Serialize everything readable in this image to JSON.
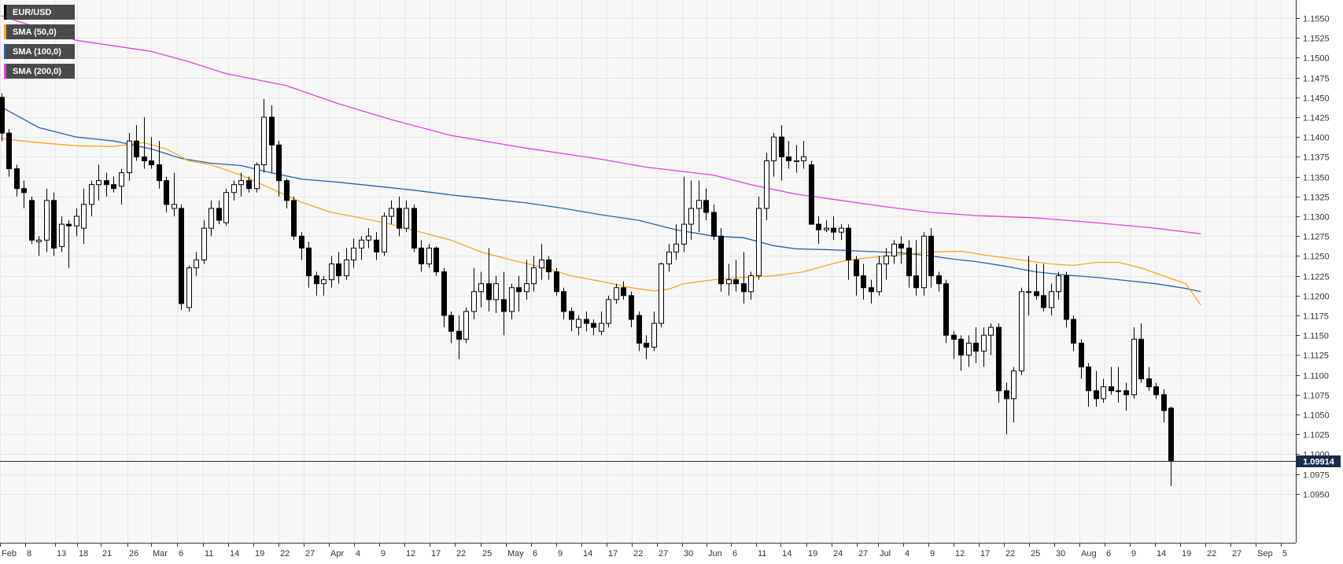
{
  "legend": [
    {
      "label": "EUR/USD",
      "color": "#000000"
    },
    {
      "label": "SMA (50,0)",
      "color": "#f5a623"
    },
    {
      "label": "SMA (100,0)",
      "color": "#2b5fa8"
    },
    {
      "label": "SMA (200,0)",
      "color": "#e040e0"
    }
  ],
  "last_price_label": "1.09914",
  "chart_data": {
    "type": "candlestick",
    "x_ticks": [
      "Feb",
      "8",
      "13",
      "18",
      "21",
      "26",
      "Mar",
      "6",
      "11",
      "14",
      "19",
      "22",
      "27",
      "Apr",
      "4",
      "9",
      "12",
      "17",
      "22",
      "25",
      "May",
      "6",
      "9",
      "14",
      "17",
      "22",
      "27",
      "30",
      "Jun",
      "6",
      "11",
      "14",
      "19",
      "24",
      "27",
      "Jul",
      "4",
      "9",
      "12",
      "17",
      "22",
      "25",
      "30",
      "Aug",
      "6",
      "9",
      "14",
      "19",
      "22",
      "27",
      "Sep",
      "5"
    ],
    "y_ticks": [
      "1.1550",
      "1.1525",
      "1.1500",
      "1.1475",
      "1.1450",
      "1.1425",
      "1.1400",
      "1.1375",
      "1.1350",
      "1.1325",
      "1.1300",
      "1.1275",
      "1.1250",
      "1.1225",
      "1.1200",
      "1.1175",
      "1.1150",
      "1.1125",
      "1.1100",
      "1.1075",
      "1.1050",
      "1.1025",
      "1.1000",
      "1.0975",
      "1.0950"
    ],
    "ylim": [
      1.0945,
      1.157
    ],
    "last_price": 1.09914,
    "colors": {
      "up_body": "#ffffff",
      "down_body": "#000000",
      "wick": "#000000",
      "sma50": "#f5a623",
      "sma100": "#2b5fa8",
      "sma200": "#e040e0",
      "price_line": "#1a2b4c",
      "grid": "#e6e6e6"
    },
    "candles": [
      [
        1.145,
        1.1455,
        1.1395,
        1.1405
      ],
      [
        1.1405,
        1.141,
        1.135,
        1.136
      ],
      [
        1.136,
        1.1365,
        1.1325,
        1.1335
      ],
      [
        1.1335,
        1.1345,
        1.131,
        1.133
      ],
      [
        1.132,
        1.1325,
        1.1265,
        1.127
      ],
      [
        1.1268,
        1.1275,
        1.125,
        1.127
      ],
      [
        1.127,
        1.1335,
        1.1255,
        1.132
      ],
      [
        1.132,
        1.133,
        1.125,
        1.126
      ],
      [
        1.1262,
        1.13,
        1.1255,
        1.129
      ],
      [
        1.129,
        1.1295,
        1.1235,
        1.1288
      ],
      [
        1.1288,
        1.131,
        1.1275,
        1.13
      ],
      [
        1.1285,
        1.1335,
        1.1265,
        1.1315
      ],
      [
        1.1315,
        1.1345,
        1.13,
        1.134
      ],
      [
        1.134,
        1.1365,
        1.132,
        1.1345
      ],
      [
        1.1345,
        1.1355,
        1.1325,
        1.134
      ],
      [
        1.134,
        1.135,
        1.133,
        1.1335
      ],
      [
        1.1338,
        1.136,
        1.1315,
        1.1355
      ],
      [
        1.1355,
        1.1405,
        1.1345,
        1.1395
      ],
      [
        1.1395,
        1.1415,
        1.137,
        1.1375
      ],
      [
        1.1375,
        1.1425,
        1.136,
        1.137
      ],
      [
        1.137,
        1.14,
        1.136,
        1.1365
      ],
      [
        1.1365,
        1.1395,
        1.1335,
        1.1345
      ],
      [
        1.1345,
        1.135,
        1.1305,
        1.1315
      ],
      [
        1.131,
        1.1355,
        1.13,
        1.1315
      ],
      [
        1.131,
        1.1315,
        1.1182,
        1.119
      ],
      [
        1.1185,
        1.1238,
        1.118,
        1.1235
      ],
      [
        1.1235,
        1.1255,
        1.1225,
        1.1245
      ],
      [
        1.1245,
        1.1295,
        1.124,
        1.1285
      ],
      [
        1.1285,
        1.132,
        1.1275,
        1.131
      ],
      [
        1.131,
        1.132,
        1.129,
        1.1295
      ],
      [
        1.1292,
        1.1335,
        1.1288,
        1.133
      ],
      [
        1.133,
        1.1345,
        1.132,
        1.134
      ],
      [
        1.134,
        1.1355,
        1.1325,
        1.1345
      ],
      [
        1.1345,
        1.135,
        1.133,
        1.1335
      ],
      [
        1.1335,
        1.1368,
        1.133,
        1.1365
      ],
      [
        1.1365,
        1.1448,
        1.1355,
        1.1425
      ],
      [
        1.1425,
        1.144,
        1.1355,
        1.139
      ],
      [
        1.139,
        1.1395,
        1.1325,
        1.1345
      ],
      [
        1.1345,
        1.1348,
        1.131,
        1.132
      ],
      [
        1.132,
        1.1325,
        1.127,
        1.1275
      ],
      [
        1.1275,
        1.128,
        1.1245,
        1.126
      ],
      [
        1.126,
        1.1268,
        1.121,
        1.1225
      ],
      [
        1.1225,
        1.123,
        1.12,
        1.1215
      ],
      [
        1.1215,
        1.1225,
        1.12,
        1.122
      ],
      [
        1.122,
        1.125,
        1.121,
        1.124
      ],
      [
        1.124,
        1.1255,
        1.1215,
        1.1225
      ],
      [
        1.1225,
        1.126,
        1.122,
        1.1245
      ],
      [
        1.1245,
        1.1272,
        1.1235,
        1.126
      ],
      [
        1.126,
        1.1275,
        1.1245,
        1.127
      ],
      [
        1.127,
        1.1285,
        1.126,
        1.1275
      ],
      [
        1.127,
        1.128,
        1.1245,
        1.1255
      ],
      [
        1.1255,
        1.1305,
        1.125,
        1.13
      ],
      [
        1.13,
        1.132,
        1.129,
        1.131
      ],
      [
        1.131,
        1.1325,
        1.1275,
        1.1285
      ],
      [
        1.1285,
        1.132,
        1.128,
        1.131
      ],
      [
        1.131,
        1.1315,
        1.1255,
        1.126
      ],
      [
        1.126,
        1.127,
        1.123,
        1.124
      ],
      [
        1.124,
        1.1265,
        1.1235,
        1.126
      ],
      [
        1.126,
        1.1262,
        1.1225,
        1.123
      ],
      [
        1.123,
        1.1235,
        1.116,
        1.1175
      ],
      [
        1.1175,
        1.118,
        1.114,
        1.1155
      ],
      [
        1.1155,
        1.1175,
        1.112,
        1.1145
      ],
      [
        1.1145,
        1.1185,
        1.114,
        1.118
      ],
      [
        1.118,
        1.1235,
        1.117,
        1.1205
      ],
      [
        1.1205,
        1.123,
        1.1185,
        1.1215
      ],
      [
        1.1215,
        1.126,
        1.118,
        1.1195
      ],
      [
        1.1195,
        1.1225,
        1.1178,
        1.1215
      ],
      [
        1.1195,
        1.123,
        1.115,
        1.118
      ],
      [
        1.118,
        1.1215,
        1.117,
        1.121
      ],
      [
        1.121,
        1.1225,
        1.118,
        1.1205
      ],
      [
        1.1205,
        1.1245,
        1.1195,
        1.1215
      ],
      [
        1.1215,
        1.125,
        1.1205,
        1.1235
      ],
      [
        1.1235,
        1.1265,
        1.122,
        1.1245
      ],
      [
        1.1245,
        1.125,
        1.122,
        1.123
      ],
      [
        1.123,
        1.1235,
        1.12,
        1.1205
      ],
      [
        1.1205,
        1.121,
        1.117,
        1.118
      ],
      [
        1.118,
        1.1185,
        1.1155,
        1.117
      ],
      [
        1.116,
        1.1175,
        1.115,
        1.117
      ],
      [
        1.117,
        1.118,
        1.1155,
        1.1165
      ],
      [
        1.1165,
        1.117,
        1.115,
        1.116
      ],
      [
        1.1155,
        1.118,
        1.115,
        1.1165
      ],
      [
        1.1165,
        1.12,
        1.116,
        1.1195
      ],
      [
        1.1195,
        1.1215,
        1.119,
        1.121
      ],
      [
        1.121,
        1.1218,
        1.1195,
        1.12
      ],
      [
        1.12,
        1.1205,
        1.116,
        1.117
      ],
      [
        1.1175,
        1.118,
        1.113,
        1.114
      ],
      [
        1.114,
        1.115,
        1.112,
        1.1135
      ],
      [
        1.1135,
        1.118,
        1.113,
        1.1165
      ],
      [
        1.1165,
        1.1242,
        1.116,
        1.124
      ],
      [
        1.124,
        1.1265,
        1.123,
        1.1255
      ],
      [
        1.1255,
        1.129,
        1.1245,
        1.1265
      ],
      [
        1.1265,
        1.135,
        1.1255,
        1.129
      ],
      [
        1.129,
        1.1345,
        1.127,
        1.131
      ],
      [
        1.131,
        1.1345,
        1.128,
        1.132
      ],
      [
        1.132,
        1.1335,
        1.1295,
        1.1305
      ],
      [
        1.1305,
        1.1315,
        1.127,
        1.1275
      ],
      [
        1.1275,
        1.1285,
        1.1205,
        1.1215
      ],
      [
        1.1215,
        1.124,
        1.12,
        1.122
      ],
      [
        1.122,
        1.1245,
        1.1205,
        1.1215
      ],
      [
        1.1215,
        1.1255,
        1.119,
        1.1205
      ],
      [
        1.1205,
        1.123,
        1.1195,
        1.1225
      ],
      [
        1.1225,
        1.1325,
        1.122,
        1.131
      ],
      [
        1.131,
        1.138,
        1.1295,
        1.137
      ],
      [
        1.137,
        1.1405,
        1.135,
        1.14
      ],
      [
        1.14,
        1.1415,
        1.1345,
        1.1375
      ],
      [
        1.1375,
        1.1395,
        1.136,
        1.137
      ],
      [
        1.137,
        1.139,
        1.1355,
        1.137
      ],
      [
        1.137,
        1.1395,
        1.136,
        1.1375
      ],
      [
        1.1365,
        1.137,
        1.129,
        1.129
      ],
      [
        1.129,
        1.13,
        1.1265,
        1.1283
      ],
      [
        1.1283,
        1.1295,
        1.128,
        1.1285
      ],
      [
        1.1285,
        1.13,
        1.127,
        1.128
      ],
      [
        1.128,
        1.129,
        1.127,
        1.1285
      ],
      [
        1.1285,
        1.129,
        1.122,
        1.1245
      ],
      [
        1.1245,
        1.125,
        1.12,
        1.1225
      ],
      [
        1.1225,
        1.124,
        1.1195,
        1.121
      ],
      [
        1.121,
        1.122,
        1.119,
        1.1205
      ],
      [
        1.1205,
        1.125,
        1.12,
        1.124
      ],
      [
        1.124,
        1.126,
        1.122,
        1.125
      ],
      [
        1.125,
        1.127,
        1.124,
        1.1265
      ],
      [
        1.1265,
        1.1275,
        1.124,
        1.126
      ],
      [
        1.126,
        1.127,
        1.121,
        1.1225
      ],
      [
        1.1225,
        1.127,
        1.12,
        1.121
      ],
      [
        1.121,
        1.128,
        1.12,
        1.1275
      ],
      [
        1.1275,
        1.1285,
        1.121,
        1.1225
      ],
      [
        1.1225,
        1.123,
        1.1205,
        1.1215
      ],
      [
        1.1215,
        1.122,
        1.114,
        1.115
      ],
      [
        1.115,
        1.1155,
        1.112,
        1.1145
      ],
      [
        1.1145,
        1.115,
        1.1105,
        1.1125
      ],
      [
        1.1125,
        1.115,
        1.111,
        1.114
      ],
      [
        1.114,
        1.116,
        1.1115,
        1.113
      ],
      [
        1.113,
        1.116,
        1.111,
        1.115
      ],
      [
        1.115,
        1.1165,
        1.1125,
        1.116
      ],
      [
        1.116,
        1.1165,
        1.1065,
        1.108
      ],
      [
        1.108,
        1.109,
        1.1025,
        1.107
      ],
      [
        1.107,
        1.111,
        1.104,
        1.1105
      ],
      [
        1.1105,
        1.121,
        1.11,
        1.1205
      ],
      [
        1.1205,
        1.125,
        1.1175,
        1.1205
      ],
      [
        1.1205,
        1.124,
        1.1195,
        1.12
      ],
      [
        1.12,
        1.124,
        1.118,
        1.1185
      ],
      [
        1.1185,
        1.1215,
        1.1175,
        1.1205
      ],
      [
        1.1205,
        1.123,
        1.1195,
        1.1225
      ],
      [
        1.1225,
        1.123,
        1.116,
        1.117
      ],
      [
        1.117,
        1.1175,
        1.113,
        1.114
      ],
      [
        1.114,
        1.1145,
        1.1095,
        1.111
      ],
      [
        1.111,
        1.1115,
        1.106,
        1.108
      ],
      [
        1.108,
        1.1105,
        1.106,
        1.107
      ],
      [
        1.107,
        1.1095,
        1.1065,
        1.1085
      ],
      [
        1.1085,
        1.111,
        1.1075,
        1.108
      ],
      [
        1.108,
        1.111,
        1.1065,
        1.108
      ],
      [
        1.108,
        1.109,
        1.1055,
        1.1075
      ],
      [
        1.1075,
        1.116,
        1.107,
        1.1145
      ],
      [
        1.1145,
        1.1165,
        1.109,
        1.1095
      ],
      [
        1.1095,
        1.111,
        1.108,
        1.1085
      ],
      [
        1.1085,
        1.109,
        1.107,
        1.1075
      ],
      [
        1.1075,
        1.1082,
        1.104,
        1.1055
      ],
      [
        1.1058,
        1.106,
        1.096,
        1.0991
      ]
    ],
    "sma50": [
      [
        0,
        1.1398
      ],
      [
        5,
        1.1393
      ],
      [
        10,
        1.1389
      ],
      [
        15,
        1.1388
      ],
      [
        19,
        1.1393
      ],
      [
        22,
        1.1385
      ],
      [
        25,
        1.137
      ],
      [
        28,
        1.1365
      ],
      [
        32,
        1.1352
      ],
      [
        36,
        1.1335
      ],
      [
        40,
        1.1318
      ],
      [
        44,
        1.1305
      ],
      [
        48,
        1.1298
      ],
      [
        52,
        1.129
      ],
      [
        56,
        1.128
      ],
      [
        60,
        1.127
      ],
      [
        64,
        1.1255
      ],
      [
        68,
        1.1245
      ],
      [
        72,
        1.1236
      ],
      [
        76,
        1.1225
      ],
      [
        80,
        1.1218
      ],
      [
        84,
        1.121
      ],
      [
        87,
        1.1206
      ],
      [
        89,
        1.1208
      ],
      [
        91,
        1.1215
      ],
      [
        95,
        1.122
      ],
      [
        99,
        1.1223
      ],
      [
        103,
        1.1225
      ],
      [
        107,
        1.123
      ],
      [
        110,
        1.1238
      ],
      [
        112,
        1.1243
      ],
      [
        114,
        1.1246
      ],
      [
        118,
        1.125
      ],
      [
        124,
        1.1255
      ],
      [
        128,
        1.1256
      ],
      [
        132,
        1.125
      ],
      [
        136,
        1.1245
      ],
      [
        140,
        1.124
      ],
      [
        143,
        1.1238
      ],
      [
        146,
        1.1242
      ],
      [
        149,
        1.1242
      ],
      [
        152,
        1.1235
      ],
      [
        155,
        1.1225
      ],
      [
        158,
        1.1215
      ],
      [
        160,
        1.1188
      ]
    ],
    "sma100": [
      [
        0,
        1.1438
      ],
      [
        5,
        1.1412
      ],
      [
        10,
        1.14
      ],
      [
        15,
        1.1395
      ],
      [
        20,
        1.1385
      ],
      [
        24,
        1.1373
      ],
      [
        28,
        1.1367
      ],
      [
        32,
        1.1364
      ],
      [
        36,
        1.1355
      ],
      [
        40,
        1.1347
      ],
      [
        45,
        1.1343
      ],
      [
        50,
        1.1338
      ],
      [
        55,
        1.1333
      ],
      [
        60,
        1.1327
      ],
      [
        65,
        1.1322
      ],
      [
        70,
        1.1317
      ],
      [
        75,
        1.131
      ],
      [
        80,
        1.1302
      ],
      [
        85,
        1.1295
      ],
      [
        90,
        1.1283
      ],
      [
        95,
        1.1275
      ],
      [
        99,
        1.1273
      ],
      [
        103,
        1.1263
      ],
      [
        106,
        1.1259
      ],
      [
        110,
        1.1258
      ],
      [
        115,
        1.1256
      ],
      [
        120,
        1.1254
      ],
      [
        124,
        1.125
      ],
      [
        127,
        1.1246
      ],
      [
        130,
        1.1243
      ],
      [
        134,
        1.1237
      ],
      [
        138,
        1.123
      ],
      [
        142,
        1.1226
      ],
      [
        146,
        1.1223
      ],
      [
        150,
        1.1219
      ],
      [
        154,
        1.1215
      ],
      [
        158,
        1.1209
      ],
      [
        160,
        1.1205
      ]
    ],
    "sma200": [
      [
        0,
        1.1553
      ],
      [
        10,
        1.1522
      ],
      [
        20,
        1.1508
      ],
      [
        25,
        1.1495
      ],
      [
        30,
        1.148
      ],
      [
        38,
        1.1465
      ],
      [
        45,
        1.1442
      ],
      [
        52,
        1.1422
      ],
      [
        60,
        1.1402
      ],
      [
        70,
        1.1386
      ],
      [
        80,
        1.1372
      ],
      [
        86,
        1.1362
      ],
      [
        95,
        1.1352
      ],
      [
        100,
        1.134
      ],
      [
        106,
        1.1328
      ],
      [
        112,
        1.132
      ],
      [
        118,
        1.1312
      ],
      [
        124,
        1.1305
      ],
      [
        130,
        1.1301
      ],
      [
        138,
        1.1298
      ],
      [
        146,
        1.1292
      ],
      [
        154,
        1.1285
      ],
      [
        160,
        1.1278
      ]
    ]
  }
}
